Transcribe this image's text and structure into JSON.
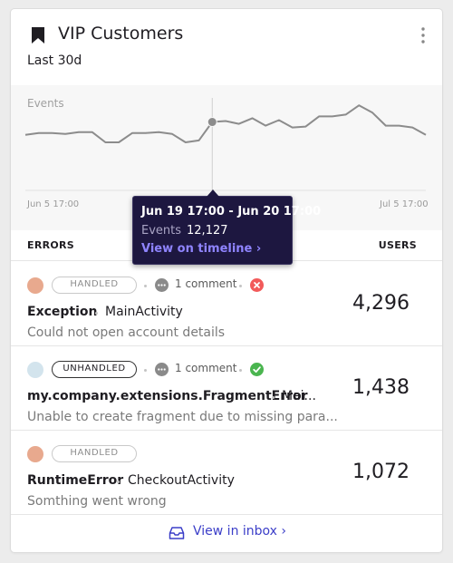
{
  "widget": {
    "title": "VIP Customers",
    "period": "Last 30d",
    "colors": {
      "accent": "#3b3ec8",
      "tooltip_bg": "#1d1740",
      "tooltip_link": "#8f84ff",
      "line": "#8c8c8c"
    }
  },
  "chart_data": {
    "type": "line",
    "series": [
      {
        "values": [
          60,
          62,
          62,
          61,
          63,
          63,
          52,
          52,
          62,
          62,
          63,
          61,
          52,
          54,
          74,
          75,
          72,
          78,
          70,
          76,
          68,
          69,
          80,
          80,
          82,
          92,
          84,
          70,
          70,
          68,
          60
        ]
      }
    ],
    "ylabel": "Events",
    "x_tick_labels": [
      "Jun 5 17:00",
      "Jul 5 17:00"
    ],
    "highlighted_index": 14,
    "grid": false
  },
  "tooltip": {
    "range": "Jun 19 17:00 - Jun 20 17:00",
    "events_label": "Events",
    "events_value": "12,127",
    "link": "View on timeline ›"
  },
  "table": {
    "col_errors": "ERRORS",
    "col_users": "USERS",
    "rows": [
      {
        "avatar_color": "#e8a98e",
        "status": "HANDLED",
        "comments": "1 comment",
        "state_icon": "error-x-icon",
        "type": "Exception",
        "location": "MainActivity",
        "message": "Could not open account details",
        "users": "4,296"
      },
      {
        "avatar_color": "#d3e4ed",
        "status": "UNHANDLED",
        "comments": "1 comment",
        "state_icon": "check-circle-icon",
        "type": "my.company.extensions.FragmentError",
        "location": "Mai...",
        "message": "Unable to create fragment due to missing para...",
        "users": "1,438"
      },
      {
        "avatar_color": "#e8a98e",
        "status": "HANDLED",
        "type": "RuntimeError",
        "location": "CheckoutActivity",
        "message": "Somthing went wrong",
        "users": "1,072"
      }
    ]
  },
  "footer": {
    "link": "View in inbox ›"
  }
}
